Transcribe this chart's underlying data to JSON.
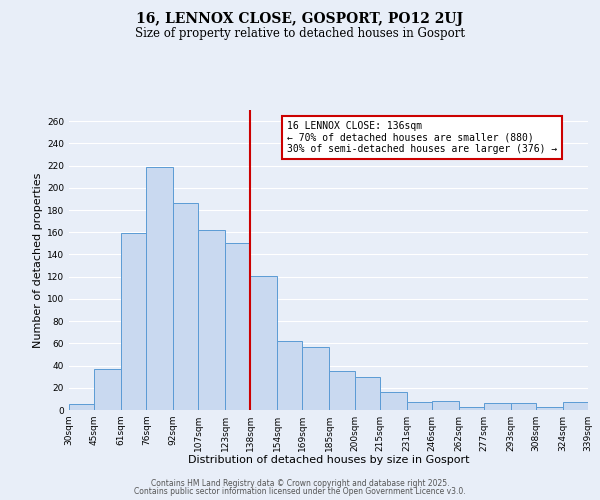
{
  "title": "16, LENNOX CLOSE, GOSPORT, PO12 2UJ",
  "subtitle": "Size of property relative to detached houses in Gosport",
  "xlabel": "Distribution of detached houses by size in Gosport",
  "ylabel": "Number of detached properties",
  "categories": [
    "30sqm",
    "45sqm",
    "61sqm",
    "76sqm",
    "92sqm",
    "107sqm",
    "123sqm",
    "138sqm",
    "154sqm",
    "169sqm",
    "185sqm",
    "200sqm",
    "215sqm",
    "231sqm",
    "246sqm",
    "262sqm",
    "277sqm",
    "293sqm",
    "308sqm",
    "324sqm",
    "339sqm"
  ],
  "bar_edges": [
    30,
    45,
    61,
    76,
    92,
    107,
    123,
    138,
    154,
    169,
    185,
    200,
    215,
    231,
    246,
    262,
    277,
    293,
    308,
    324,
    339
  ],
  "bar_heights": [
    5,
    37,
    159,
    219,
    186,
    162,
    150,
    121,
    62,
    57,
    35,
    30,
    16,
    7,
    8,
    3,
    6,
    6,
    3,
    7
  ],
  "bar_color": "#c9d9f0",
  "bar_edge_color": "#5b9bd5",
  "vline_x": 138,
  "vline_color": "#cc0000",
  "ylim": [
    0,
    270
  ],
  "yticks": [
    0,
    20,
    40,
    60,
    80,
    100,
    120,
    140,
    160,
    180,
    200,
    220,
    240,
    260
  ],
  "annotation_title": "16 LENNOX CLOSE: 136sqm",
  "annotation_line1": "← 70% of detached houses are smaller (880)",
  "annotation_line2": "30% of semi-detached houses are larger (376) →",
  "annotation_box_color": "#ffffff",
  "annotation_box_edge": "#cc0000",
  "footer1": "Contains HM Land Registry data © Crown copyright and database right 2025.",
  "footer2": "Contains public sector information licensed under the Open Government Licence v3.0.",
  "background_color": "#e8eef8",
  "grid_color": "#ffffff",
  "title_fontsize": 10,
  "subtitle_fontsize": 8.5,
  "axis_label_fontsize": 8,
  "tick_fontsize": 6.5,
  "annotation_fontsize": 7,
  "footer_fontsize": 5.5
}
